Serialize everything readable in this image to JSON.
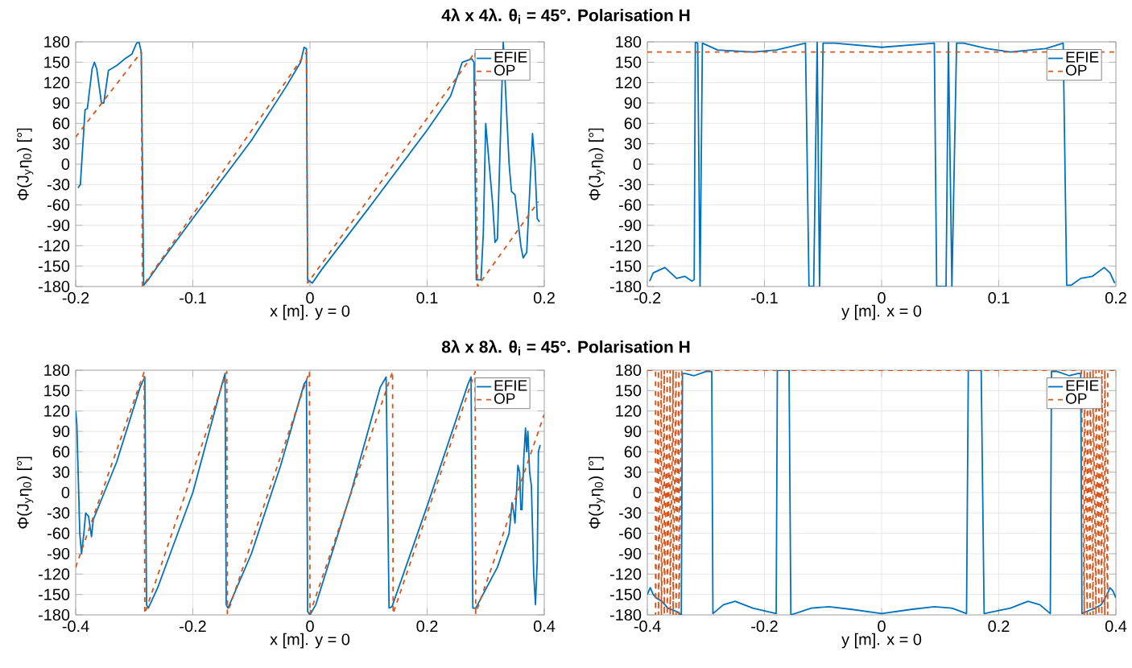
{
  "chart_data": [
    {
      "type": "line",
      "title": "4λ x 4λ. θ$_{i}$ = 45°. Polarisation H",
      "xlabel": "x [m]. y = 0",
      "ylabel": "Φ(J$_{y}$η$_{0}$)  [°]",
      "xlim": [
        -0.2,
        0.2
      ],
      "ylim": [
        -180,
        180
      ],
      "xticks": [
        -0.2,
        -0.1,
        0,
        0.1,
        0.2
      ],
      "yticks": [
        -180,
        -150,
        -120,
        -90,
        -60,
        -30,
        0,
        30,
        60,
        90,
        120,
        150,
        180
      ],
      "grid": true,
      "legend": "top right",
      "series": [
        {
          "name": "EFIE",
          "color": "#0072bd",
          "line_style": "solid",
          "x": [
            -0.198,
            -0.196,
            -0.192,
            -0.19,
            -0.186,
            -0.184,
            -0.182,
            -0.178,
            -0.176,
            -0.172,
            -0.165,
            -0.158,
            -0.152,
            -0.148,
            -0.146,
            -0.144,
            -0.142,
            -0.138,
            -0.13,
            -0.1,
            -0.05,
            -0.02,
            -0.008,
            -0.005,
            -0.003,
            -0.002,
            0.002,
            0.01,
            0.05,
            0.1,
            0.12,
            0.13,
            0.138,
            0.14,
            0.142,
            0.146,
            0.148,
            0.15,
            0.156,
            0.158,
            0.16,
            0.165,
            0.17,
            0.172,
            0.175,
            0.18,
            0.182,
            0.185,
            0.19,
            0.192,
            0.194,
            0.196
          ],
          "values": [
            -35,
            -30,
            80,
            82,
            140,
            150,
            140,
            90,
            90,
            138,
            145,
            155,
            162,
            178,
            180,
            165,
            -178,
            -170,
            -150,
            -80,
            35,
            115,
            150,
            172,
            170,
            -170,
            -175,
            -155,
            -65,
            50,
            100,
            150,
            155,
            150,
            -170,
            -170,
            -100,
            60,
            -60,
            -115,
            -110,
            180,
            0,
            -40,
            -45,
            -120,
            -138,
            -130,
            45,
            0,
            -80,
            -85
          ]
        },
        {
          "name": "OP",
          "color": "#d95319",
          "line_style": "dashed",
          "x": [
            -0.2,
            -0.144,
            -0.143,
            -0.003,
            -0.002,
            0.141,
            0.143,
            0.195
          ],
          "values": [
            40,
            165,
            -180,
            165,
            -175,
            165,
            -180,
            -55
          ]
        }
      ]
    },
    {
      "type": "line",
      "xlabel": "y [m]. x = 0",
      "ylabel": "Φ(J$_{y}$η$_{0}$)  [°]",
      "xlim": [
        -0.2,
        0.2
      ],
      "ylim": [
        -180,
        180
      ],
      "xticks": [
        -0.2,
        -0.1,
        0,
        0.1,
        0.2
      ],
      "yticks": [
        -180,
        -150,
        -120,
        -90,
        -60,
        -30,
        0,
        30,
        60,
        90,
        120,
        150,
        180
      ],
      "grid": true,
      "legend": "top right",
      "series": [
        {
          "name": "EFIE",
          "color": "#0072bd",
          "line_style": "solid",
          "x": [
            -0.198,
            -0.195,
            -0.185,
            -0.175,
            -0.168,
            -0.162,
            -0.16,
            -0.159,
            -0.157,
            -0.155,
            -0.153,
            -0.14,
            -0.11,
            -0.09,
            -0.065,
            -0.062,
            -0.058,
            -0.055,
            -0.053,
            -0.05,
            -0.04,
            0,
            0.045,
            0.047,
            0.055,
            0.057,
            0.06,
            0.064,
            0.07,
            0.09,
            0.11,
            0.14,
            0.155,
            0.158,
            0.162,
            0.17,
            0.18,
            0.19,
            0.195,
            0.199
          ],
          "values": [
            -172,
            -160,
            -152,
            -168,
            -165,
            -172,
            -170,
            180,
            178,
            -180,
            178,
            168,
            165,
            168,
            178,
            -180,
            -180,
            180,
            -180,
            178,
            178,
            172,
            178,
            -180,
            -180,
            180,
            -180,
            178,
            178,
            170,
            165,
            170,
            178,
            -178,
            -178,
            -168,
            -165,
            -152,
            -160,
            -175
          ]
        },
        {
          "name": "OP",
          "color": "#d95319",
          "line_style": "dashed",
          "x": [
            -0.2,
            0.2
          ],
          "values": [
            165,
            165
          ]
        }
      ]
    },
    {
      "type": "line",
      "title": "8λ x 8λ. θ$_{i}$ = 45°. Polarisation H",
      "xlabel": "x [m]. y = 0",
      "ylabel": "Φ(J$_{y}$η$_{0}$)  [°]",
      "xlim": [
        -0.4,
        0.4
      ],
      "ylim": [
        -180,
        180
      ],
      "xticks": [
        -0.4,
        -0.2,
        0,
        0.2,
        0.4
      ],
      "yticks": [
        -180,
        -150,
        -120,
        -90,
        -60,
        -30,
        0,
        30,
        60,
        90,
        120,
        150,
        180
      ],
      "grid": true,
      "legend": "top right",
      "series": [
        {
          "name": "EFIE",
          "color": "#0072bd",
          "line_style": "solid",
          "x": [
            -0.4,
            -0.398,
            -0.393,
            -0.39,
            -0.386,
            -0.383,
            -0.378,
            -0.373,
            -0.37,
            -0.33,
            -0.29,
            -0.282,
            -0.279,
            -0.276,
            -0.26,
            -0.2,
            -0.15,
            -0.145,
            -0.143,
            -0.14,
            -0.1,
            -0.05,
            -0.01,
            -0.006,
            -0.004,
            0,
            0.01,
            0.07,
            0.12,
            0.13,
            0.135,
            0.14,
            0.2,
            0.27,
            0.275,
            0.278,
            0.283,
            0.32,
            0.34,
            0.345,
            0.348,
            0.35,
            0.355,
            0.358,
            0.36,
            0.362,
            0.365,
            0.368,
            0.37,
            0.372,
            0.375,
            0.378,
            0.382,
            0.385,
            0.388,
            0.39,
            0.393
          ],
          "values": [
            120,
            100,
            -60,
            -90,
            -60,
            -30,
            -35,
            -65,
            -40,
            45,
            155,
            170,
            -165,
            -170,
            -140,
            0,
            160,
            175,
            -165,
            -170,
            -90,
            40,
            160,
            165,
            -175,
            -180,
            -165,
            0,
            155,
            170,
            -170,
            -168,
            -20,
            160,
            170,
            -170,
            -170,
            -110,
            -60,
            -15,
            -30,
            -45,
            40,
            30,
            -25,
            -25,
            50,
            95,
            60,
            90,
            30,
            10,
            -120,
            -165,
            -100,
            60,
            70
          ]
        },
        {
          "name": "OP",
          "color": "#d95319",
          "line_style": "dashed",
          "x": [
            -0.4,
            -0.283,
            -0.282,
            -0.142,
            -0.141,
            -0.001,
            0,
            0.141,
            0.142,
            0.282,
            0.283,
            0.4
          ],
          "values": [
            -110,
            178,
            -178,
            178,
            -178,
            178,
            -178,
            178,
            -178,
            178,
            -178,
            115
          ]
        }
      ]
    },
    {
      "type": "line",
      "xlabel": "y [m]. x = 0",
      "ylabel": "Φ(J$_{y}$η$_{0}$)  [°]",
      "xlim": [
        -0.4,
        0.4
      ],
      "ylim": [
        -180,
        180
      ],
      "xticks": [
        -0.4,
        -0.2,
        0,
        0.2,
        0.4
      ],
      "yticks": [
        -180,
        -150,
        -120,
        -90,
        -60,
        -30,
        0,
        30,
        60,
        90,
        120,
        150,
        180
      ],
      "grid": true,
      "legend": "top right",
      "series": [
        {
          "name": "EFIE",
          "color": "#0072bd",
          "line_style": "solid",
          "x": [
            -0.4,
            -0.395,
            -0.39,
            -0.385,
            -0.375,
            -0.365,
            -0.35,
            -0.342,
            -0.34,
            -0.335,
            -0.32,
            -0.3,
            -0.29,
            -0.288,
            -0.27,
            -0.25,
            -0.22,
            -0.18,
            -0.178,
            -0.158,
            -0.155,
            -0.12,
            -0.09,
            -0.05,
            0,
            0.05,
            0.09,
            0.12,
            0.145,
            0.148,
            0.17,
            0.175,
            0.22,
            0.25,
            0.27,
            0.288,
            0.29,
            0.3,
            0.32,
            0.335,
            0.34,
            0.342,
            0.35,
            0.365,
            0.375,
            0.385,
            0.39,
            0.395,
            0.4
          ],
          "values": [
            -150,
            -140,
            -150,
            -155,
            -160,
            -170,
            -175,
            -180,
            175,
            175,
            172,
            178,
            178,
            -178,
            -165,
            -160,
            -170,
            -178,
            180,
            180,
            -180,
            -170,
            -168,
            -172,
            -178,
            -172,
            -168,
            -170,
            -178,
            180,
            180,
            -178,
            -170,
            -160,
            -165,
            -178,
            178,
            178,
            172,
            175,
            175,
            -178,
            -175,
            -170,
            -165,
            -150,
            -140,
            -145,
            -155
          ]
        },
        {
          "name": "OP",
          "color": "#d95319",
          "line_style": "dashed",
          "x": [
            -0.4,
            -0.386,
            -0.386,
            -0.381,
            -0.381,
            -0.376,
            -0.376,
            -0.371,
            -0.371,
            -0.366,
            -0.366,
            -0.361,
            -0.361,
            -0.356,
            -0.356,
            -0.351,
            -0.351,
            -0.346,
            -0.346,
            -0.341,
            0.341,
            0.346,
            0.346,
            0.351,
            0.351,
            0.356,
            0.356,
            0.361,
            0.361,
            0.366,
            0.366,
            0.371,
            0.371,
            0.376,
            0.376,
            0.381,
            0.381,
            0.386,
            0.386,
            0.4
          ],
          "values": [
            180,
            180,
            -180,
            180,
            -180,
            180,
            -180,
            180,
            -180,
            180,
            -180,
            180,
            -180,
            180,
            -180,
            180,
            -180,
            180,
            -180,
            180,
            180,
            -180,
            180,
            -180,
            180,
            -180,
            180,
            -180,
            180,
            -180,
            180,
            -180,
            180,
            -180,
            180,
            -180,
            180,
            -180,
            180,
            180
          ]
        }
      ]
    }
  ]
}
